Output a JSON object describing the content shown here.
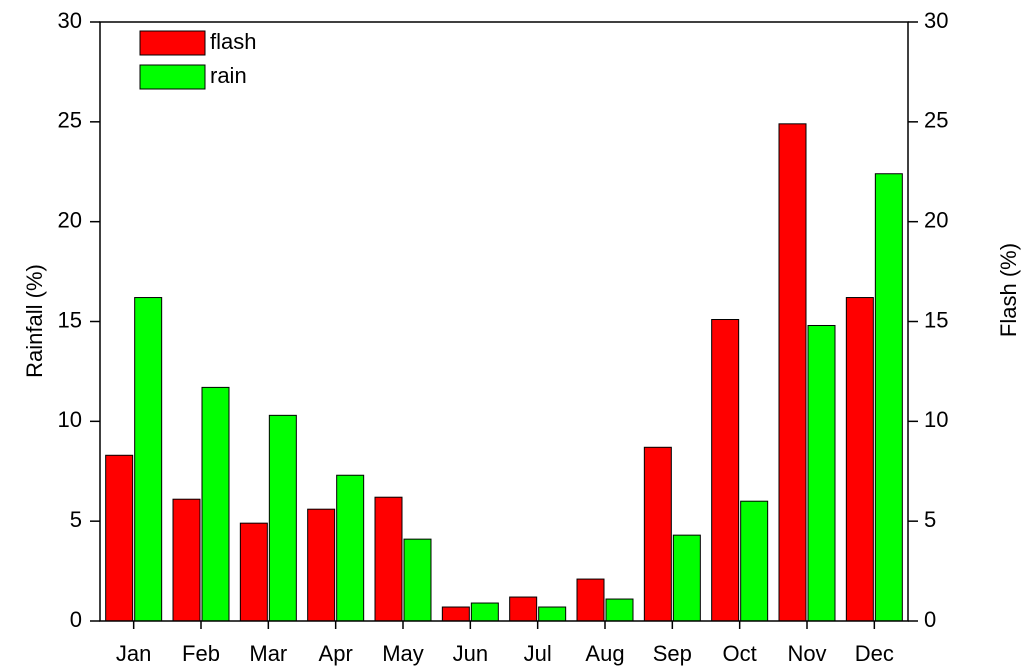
{
  "chart_data": {
    "type": "bar",
    "categories": [
      "Jan",
      "Feb",
      "Mar",
      "Apr",
      "May",
      "Jun",
      "Jul",
      "Aug",
      "Sep",
      "Oct",
      "Nov",
      "Dec"
    ],
    "series": [
      {
        "name": "flash",
        "color": "#ff0000",
        "axis": "y2",
        "values": [
          8.3,
          6.1,
          4.9,
          5.6,
          6.2,
          0.7,
          1.2,
          2.1,
          8.7,
          15.1,
          24.9,
          16.2
        ]
      },
      {
        "name": "rain",
        "color": "#00ff00",
        "values": [
          16.2,
          11.7,
          10.3,
          7.3,
          4.1,
          0.9,
          0.7,
          1.1,
          4.3,
          6.0,
          14.8,
          22.4
        ]
      }
    ],
    "ylabel": "Rainfall (%)",
    "y2label": "Flash (%)",
    "ylim": [
      0,
      30
    ],
    "yticks": [
      0,
      5,
      10,
      15,
      20,
      25,
      30
    ],
    "y2lim": [
      0,
      30
    ],
    "y2ticks": [
      0,
      5,
      10,
      15,
      20,
      25,
      30
    ],
    "legend": "upper left"
  }
}
